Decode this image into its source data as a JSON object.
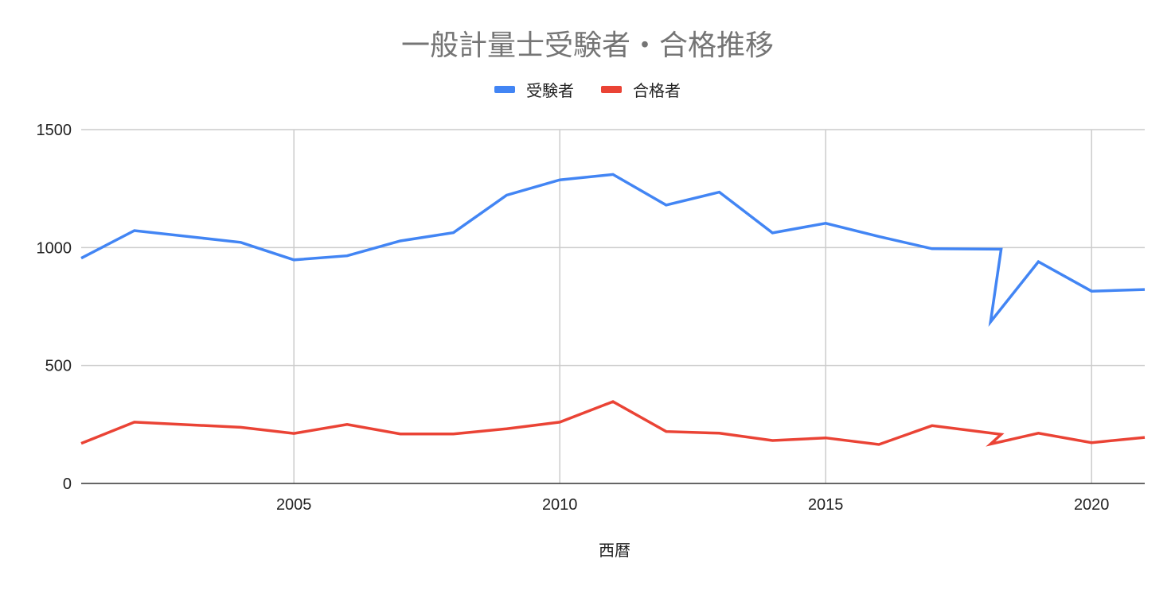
{
  "chart_data": {
    "type": "line",
    "title": "一般計量士受験者・合格推移",
    "xlabel": "西暦",
    "ylabel": "",
    "xlim": [
      2001,
      2021
    ],
    "ylim": [
      0,
      1500
    ],
    "x_ticks": [
      "2005",
      "2010",
      "2015",
      "2020"
    ],
    "y_ticks": [
      "0",
      "500",
      "1000",
      "1500"
    ],
    "grid": true,
    "legend_position": "top",
    "series": [
      {
        "name": "受験者",
        "color": "#4285f4",
        "points": [
          [
            2001,
            955
          ],
          [
            2002,
            1072
          ],
          [
            2004,
            1022
          ],
          [
            2005,
            948
          ],
          [
            2006,
            965
          ],
          [
            2007,
            1028
          ],
          [
            2008,
            1063
          ],
          [
            2009,
            1222
          ],
          [
            2010,
            1287
          ],
          [
            2011,
            1310
          ],
          [
            2012,
            1180
          ],
          [
            2013,
            1235
          ],
          [
            2014,
            1062
          ],
          [
            2015,
            1103
          ],
          [
            2016,
            1047
          ],
          [
            2017,
            995
          ],
          [
            2018.3,
            993
          ],
          [
            2018.1,
            685
          ],
          [
            2019,
            940
          ],
          [
            2020,
            815
          ],
          [
            2021,
            822
          ]
        ]
      },
      {
        "name": "合格者",
        "color": "#ea4335",
        "points": [
          [
            2001,
            170
          ],
          [
            2002,
            260
          ],
          [
            2004,
            238
          ],
          [
            2005,
            212
          ],
          [
            2006,
            250
          ],
          [
            2007,
            210
          ],
          [
            2008,
            210
          ],
          [
            2009,
            232
          ],
          [
            2010,
            260
          ],
          [
            2011,
            347
          ],
          [
            2012,
            220
          ],
          [
            2013,
            213
          ],
          [
            2014,
            182
          ],
          [
            2015,
            193
          ],
          [
            2016,
            165
          ],
          [
            2017,
            245
          ],
          [
            2018.3,
            208
          ],
          [
            2018.1,
            167
          ],
          [
            2019,
            213
          ],
          [
            2020,
            173
          ],
          [
            2021,
            195
          ]
        ]
      }
    ]
  }
}
